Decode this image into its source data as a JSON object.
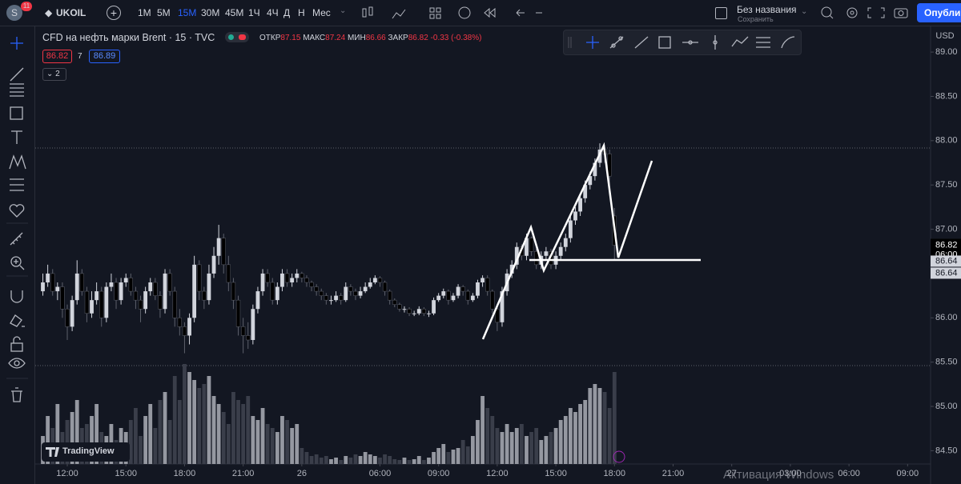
{
  "toolbar": {
    "avatar": "S",
    "badge": "11",
    "symbol": "UKOIL",
    "intervals": [
      "1М",
      "5М",
      "15М",
      "30М",
      "45М",
      "1Ч",
      "4Ч",
      "Д",
      "Н",
      "Мес"
    ],
    "active_interval": 2,
    "layout_name": "Без названия",
    "save": "Сохранить",
    "publish": "Опублик"
  },
  "legend": {
    "title": "CFD на нефть марки Brent · 15 · TVC",
    "open_label": "ОТКР",
    "open": "87.15",
    "high_label": "МАКС",
    "high": "87.24",
    "low_label": "МИН",
    "low": "86.66",
    "close_label": "ЗАКР",
    "close": "86.82",
    "change": "-0.33 (-0.38%)",
    "bid": "86.82",
    "spread": "7",
    "ask": "86.89",
    "collapsed": "2"
  },
  "watermark": "TradingView",
  "os_notice": "Активация Windows",
  "chart_data": {
    "type": "candlestick",
    "currency": "USD",
    "up_color": "#d1d4dc",
    "down_color": "#000000",
    "volume_up_color": "#9598a1",
    "volume_down_color": "#3a3e4a",
    "ylim": [
      84.35,
      89.29
    ],
    "yticks": [
      {
        "value": 89,
        "label": "89.00"
      },
      {
        "value": 88.5,
        "label": "88.50"
      },
      {
        "value": 88,
        "label": "88.00"
      },
      {
        "value": 87.5,
        "label": "87.50"
      },
      {
        "value": 87,
        "label": "87.00"
      },
      {
        "value": 86,
        "label": "86.00"
      },
      {
        "value": 85.5,
        "label": "85.50"
      },
      {
        "value": 85,
        "label": "85.00"
      },
      {
        "value": 84.5,
        "label": "84.50"
      }
    ],
    "xlim": [
      -1.56,
      181.7
    ],
    "xticks": [
      {
        "value": 5,
        "label": "12:00"
      },
      {
        "value": 17,
        "label": "15:00"
      },
      {
        "value": 29,
        "label": "18:00"
      },
      {
        "value": 41,
        "label": "21:00"
      },
      {
        "value": 53,
        "label": "26"
      },
      {
        "value": 69,
        "label": "06:00"
      },
      {
        "value": 81,
        "label": "09:00"
      },
      {
        "value": 93,
        "label": "12:00"
      },
      {
        "value": 105,
        "label": "15:00"
      },
      {
        "value": 117,
        "label": "18:00"
      },
      {
        "value": 129,
        "label": "21:00"
      },
      {
        "value": 141,
        "label": "27"
      },
      {
        "value": 153,
        "label": "03:00"
      },
      {
        "value": 165,
        "label": "06:00"
      },
      {
        "value": 177,
        "label": "09:00"
      }
    ],
    "price_labels": [
      {
        "value": 86.82,
        "label": "86.82",
        "time": "06:00"
      },
      {
        "value": 86.64,
        "label": "86.64"
      },
      {
        "value": 86.64,
        "label": "86.64"
      }
    ],
    "candles": [
      [
        86.3,
        86.5,
        86.25,
        86.4
      ],
      [
        86.4,
        86.6,
        86.35,
        86.5
      ],
      [
        86.5,
        86.55,
        86.25,
        86.3
      ],
      [
        86.3,
        86.4,
        86.2,
        86.35
      ],
      [
        86.35,
        86.4,
        86.0,
        86.1
      ],
      [
        86.1,
        86.15,
        85.75,
        85.9
      ],
      [
        85.9,
        86.25,
        85.85,
        86.2
      ],
      [
        86.2,
        86.65,
        86.15,
        86.5
      ],
      [
        86.5,
        86.55,
        86.25,
        86.3
      ],
      [
        86.3,
        86.35,
        85.95,
        86.05
      ],
      [
        86.05,
        86.3,
        86.0,
        86.2
      ],
      [
        86.2,
        86.4,
        86.15,
        86.3
      ],
      [
        86.3,
        86.35,
        85.9,
        86.0
      ],
      [
        86.0,
        86.4,
        85.95,
        86.35
      ],
      [
        86.35,
        86.5,
        86.3,
        86.4
      ],
      [
        86.4,
        86.45,
        86.1,
        86.2
      ],
      [
        86.2,
        86.45,
        86.15,
        86.4
      ],
      [
        86.4,
        86.5,
        86.35,
        86.45
      ],
      [
        86.45,
        86.5,
        86.25,
        86.3
      ],
      [
        86.3,
        86.35,
        86.1,
        86.2
      ],
      [
        86.2,
        86.25,
        85.95,
        86.1
      ],
      [
        86.1,
        86.35,
        86.05,
        86.3
      ],
      [
        86.3,
        86.45,
        86.25,
        86.4
      ],
      [
        86.4,
        86.45,
        86.2,
        86.25
      ],
      [
        86.25,
        86.3,
        86.0,
        86.1
      ],
      [
        86.1,
        86.55,
        86.05,
        86.5
      ],
      [
        86.5,
        86.55,
        86.25,
        86.3
      ],
      [
        86.3,
        86.35,
        85.9,
        86.0
      ],
      [
        86.0,
        86.1,
        85.8,
        85.9
      ],
      [
        85.9,
        85.95,
        85.6,
        85.8
      ],
      [
        85.8,
        86.05,
        85.7,
        86.0
      ],
      [
        86.0,
        86.7,
        85.95,
        86.6
      ],
      [
        86.6,
        86.65,
        86.2,
        86.3
      ],
      [
        86.3,
        86.35,
        86.1,
        86.2
      ],
      [
        86.2,
        86.6,
        86.15,
        86.5
      ],
      [
        86.5,
        86.8,
        86.45,
        86.7
      ],
      [
        86.7,
        87.05,
        86.6,
        86.9
      ],
      [
        86.9,
        86.95,
        86.5,
        86.6
      ],
      [
        86.6,
        86.7,
        86.3,
        86.4
      ],
      [
        86.4,
        86.45,
        86.1,
        86.2
      ],
      [
        86.2,
        86.25,
        85.8,
        85.9
      ],
      [
        85.9,
        86.0,
        85.6,
        85.8
      ],
      [
        85.8,
        85.95,
        85.65,
        85.75
      ],
      [
        85.75,
        86.15,
        85.7,
        86.1
      ],
      [
        86.1,
        86.35,
        86.05,
        86.3
      ],
      [
        86.3,
        86.55,
        86.25,
        86.5
      ],
      [
        86.5,
        86.55,
        86.35,
        86.4
      ],
      [
        86.4,
        86.45,
        86.15,
        86.2
      ],
      [
        86.2,
        86.4,
        86.15,
        86.35
      ],
      [
        86.35,
        86.55,
        86.3,
        86.5
      ],
      [
        86.5,
        86.55,
        86.35,
        86.4
      ],
      [
        86.4,
        86.5,
        86.35,
        86.45
      ],
      [
        86.45,
        86.55,
        86.4,
        86.5
      ],
      [
        86.5,
        86.52,
        86.4,
        86.45
      ],
      [
        86.45,
        86.48,
        86.35,
        86.4
      ],
      [
        86.4,
        86.42,
        86.3,
        86.35
      ],
      [
        86.35,
        86.38,
        86.25,
        86.3
      ],
      [
        86.3,
        86.33,
        86.2,
        86.25
      ],
      [
        86.25,
        86.28,
        86.15,
        86.2
      ],
      [
        86.2,
        86.25,
        86.15,
        86.2
      ],
      [
        86.2,
        86.3,
        86.18,
        86.25
      ],
      [
        86.25,
        86.28,
        86.15,
        86.2
      ],
      [
        86.2,
        86.4,
        86.18,
        86.35
      ],
      [
        86.35,
        86.38,
        86.25,
        86.3
      ],
      [
        86.3,
        86.33,
        86.2,
        86.25
      ],
      [
        86.25,
        86.35,
        86.22,
        86.3
      ],
      [
        86.3,
        86.4,
        86.28,
        86.35
      ],
      [
        86.35,
        86.45,
        86.33,
        86.4
      ],
      [
        86.4,
        86.48,
        86.38,
        86.45
      ],
      [
        86.45,
        86.47,
        86.35,
        86.4
      ],
      [
        86.4,
        86.42,
        86.25,
        86.3
      ],
      [
        86.3,
        86.32,
        86.15,
        86.2
      ],
      [
        86.2,
        86.22,
        86.12,
        86.15
      ],
      [
        86.15,
        86.17,
        86.07,
        86.1
      ],
      [
        86.1,
        86.13,
        86.06,
        86.1
      ],
      [
        86.1,
        86.12,
        86.02,
        86.05
      ],
      [
        86.05,
        86.08,
        86.02,
        86.05
      ],
      [
        86.05,
        86.13,
        86.03,
        86.1
      ],
      [
        86.1,
        86.12,
        86.02,
        86.05
      ],
      [
        86.05,
        86.08,
        86.01,
        86.05
      ],
      [
        86.05,
        86.23,
        86.03,
        86.2
      ],
      [
        86.2,
        86.28,
        86.18,
        86.25
      ],
      [
        86.25,
        86.33,
        86.22,
        86.3
      ],
      [
        86.3,
        86.32,
        86.15,
        86.2
      ],
      [
        86.2,
        86.28,
        86.18,
        86.25
      ],
      [
        86.25,
        86.38,
        86.22,
        86.35
      ],
      [
        86.35,
        86.37,
        86.25,
        86.3
      ],
      [
        86.3,
        86.32,
        86.15,
        86.2
      ],
      [
        86.2,
        86.28,
        86.18,
        86.25
      ],
      [
        86.25,
        86.43,
        86.22,
        86.4
      ],
      [
        86.4,
        86.48,
        86.35,
        86.45
      ],
      [
        86.45,
        86.48,
        86.25,
        86.3
      ],
      [
        86.3,
        86.32,
        86.05,
        86.1
      ],
      [
        86.1,
        86.12,
        85.85,
        85.95
      ],
      [
        85.95,
        86.35,
        85.9,
        86.3
      ],
      [
        86.3,
        86.55,
        86.25,
        86.5
      ],
      [
        86.5,
        86.65,
        86.45,
        86.6
      ],
      [
        86.6,
        86.85,
        86.55,
        86.8
      ],
      [
        86.8,
        86.83,
        86.65,
        86.7
      ],
      [
        86.7,
        86.95,
        86.65,
        86.9
      ],
      [
        86.9,
        86.92,
        86.7,
        86.75
      ],
      [
        86.75,
        86.78,
        86.55,
        86.6
      ],
      [
        86.6,
        86.75,
        86.55,
        86.7
      ],
      [
        86.7,
        86.8,
        86.65,
        86.75
      ],
      [
        86.75,
        86.78,
        86.55,
        86.6
      ],
      [
        86.6,
        86.75,
        86.55,
        86.7
      ],
      [
        86.7,
        86.85,
        86.65,
        86.8
      ],
      [
        86.8,
        86.95,
        86.75,
        86.9
      ],
      [
        86.9,
        87.15,
        86.85,
        87.1
      ],
      [
        87.1,
        87.25,
        87.05,
        87.2
      ],
      [
        87.2,
        87.4,
        87.15,
        87.35
      ],
      [
        87.35,
        87.55,
        87.3,
        87.5
      ],
      [
        87.5,
        87.65,
        87.45,
        87.6
      ],
      [
        87.6,
        87.8,
        87.55,
        87.75
      ],
      [
        87.75,
        87.97,
        87.7,
        87.9
      ],
      [
        87.9,
        87.95,
        87.75,
        87.85
      ],
      [
        87.85,
        87.9,
        87.5,
        87.6
      ],
      [
        87.15,
        87.24,
        86.66,
        86.82
      ]
    ],
    "volumes": [
      35,
      60,
      45,
      75,
      40,
      55,
      65,
      80,
      45,
      50,
      60,
      75,
      40,
      35,
      50,
      30,
      45,
      40,
      55,
      70,
      35,
      60,
      75,
      45,
      80,
      90,
      55,
      110,
      80,
      125,
      115,
      105,
      95,
      100,
      110,
      85,
      75,
      65,
      50,
      90,
      80,
      75,
      85,
      60,
      55,
      70,
      50,
      45,
      40,
      60,
      55,
      45,
      50,
      20,
      15,
      10,
      12,
      8,
      10,
      6,
      8,
      5,
      10,
      8,
      12,
      10,
      15,
      12,
      10,
      8,
      12,
      10,
      6,
      5,
      8,
      5,
      6,
      10,
      5,
      8,
      15,
      20,
      25,
      15,
      18,
      20,
      30,
      22,
      35,
      55,
      85,
      70,
      60,
      45,
      40,
      50,
      40,
      45,
      50,
      35,
      40,
      45,
      30,
      35,
      40,
      45,
      55,
      60,
      70,
      65,
      75,
      80,
      95,
      100,
      95,
      90,
      70,
      115
    ]
  }
}
